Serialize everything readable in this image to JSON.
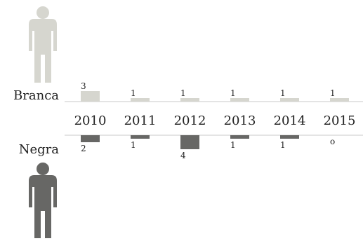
{
  "chart_data": {
    "type": "bar",
    "categories": [
      "2010",
      "2011",
      "2012",
      "2013",
      "2014",
      "2015"
    ],
    "series": [
      {
        "name": "Branca",
        "values": [
          3,
          1,
          1,
          1,
          1,
          1
        ],
        "color": "#d6d6cf",
        "direction": "up"
      },
      {
        "name": "Negra",
        "values": [
          2,
          1,
          4,
          1,
          1,
          0
        ],
        "color": "#676765",
        "direction": "down"
      }
    ],
    "value_labels": {
      "Branca": [
        "3",
        "1",
        "1",
        "1",
        "1",
        "1"
      ],
      "Negra": [
        "2",
        "1",
        "4",
        "1",
        "1",
        "o"
      ]
    },
    "figure_icons": [
      "person-icon",
      "person-icon"
    ],
    "axis_line_color": "#c8c8c8",
    "title": "",
    "xlabel": "",
    "ylabel": ""
  }
}
